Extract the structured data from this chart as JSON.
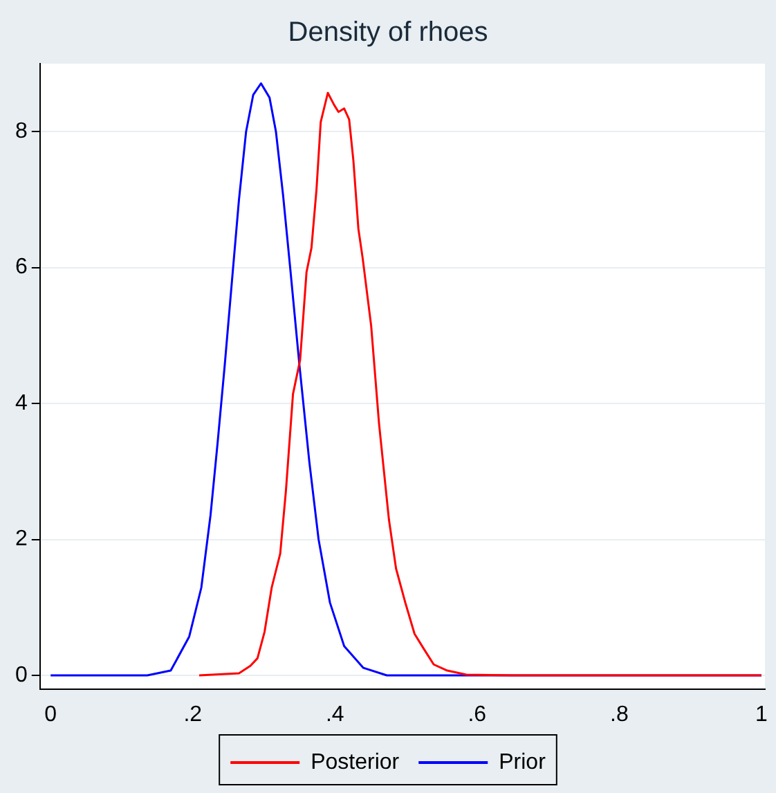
{
  "chart_data": {
    "type": "line",
    "title": "Density of rhoes",
    "xlim": [
      -0.015,
      1.005
    ],
    "xticks": [
      0,
      {
        "value": 0.2,
        "label": ".2"
      },
      {
        "value": 0.4,
        "label": ".4"
      },
      {
        "value": 0.6,
        "label": ".6"
      },
      {
        "value": 0.8,
        "label": ".8"
      },
      1
    ],
    "ylim": [
      -0.2,
      9
    ],
    "yticks": [
      0,
      2,
      4,
      6,
      8
    ],
    "grid": "y",
    "legend": "bottom",
    "marker": "none",
    "line_style": "solid",
    "series": [
      {
        "name": "Posterior",
        "color": "#ff0000",
        "x": [
          0.209,
          0.265,
          0.281,
          0.291,
          0.301,
          0.311,
          0.323,
          0.331,
          0.341,
          0.351,
          0.36,
          0.367,
          0.374,
          0.38,
          0.39,
          0.399,
          0.405,
          0.413,
          0.42,
          0.426,
          0.433,
          0.439,
          0.451,
          0.462,
          0.476,
          0.486,
          0.499,
          0.512,
          0.525,
          0.539,
          0.558,
          0.585,
          0.65,
          1
        ],
        "values": [
          0,
          0.03,
          0.14,
          0.25,
          0.64,
          1.29,
          1.79,
          2.71,
          4.14,
          4.64,
          5.93,
          6.29,
          7.14,
          8.14,
          8.57,
          8.39,
          8.29,
          8.34,
          8.18,
          7.57,
          6.57,
          6.14,
          5.14,
          3.71,
          2.29,
          1.57,
          1.07,
          0.61,
          0.39,
          0.16,
          0.07,
          0.01,
          0,
          0
        ]
      },
      {
        "name": "Prior",
        "color": "#0000ff",
        "x": [
          0,
          0.136,
          0.169,
          0.195,
          0.212,
          0.225,
          0.235,
          0.245,
          0.255,
          0.265,
          0.275,
          0.285,
          0.296,
          0.308,
          0.317,
          0.327,
          0.337,
          0.35,
          0.364,
          0.377,
          0.393,
          0.413,
          0.44,
          0.473,
          1
        ],
        "values": [
          0,
          0,
          0.07,
          0.57,
          1.29,
          2.36,
          3.43,
          4.57,
          5.79,
          7,
          8,
          8.54,
          8.71,
          8.5,
          8,
          7.07,
          6,
          4.57,
          3.14,
          2,
          1.07,
          0.43,
          0.11,
          0,
          0
        ]
      }
    ]
  }
}
